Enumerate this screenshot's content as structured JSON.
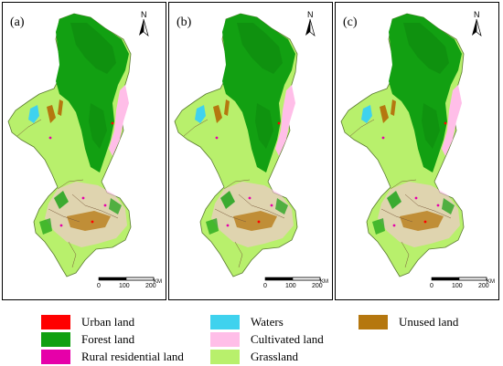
{
  "panels": [
    {
      "label": "(a)"
    },
    {
      "label": "(b)"
    },
    {
      "label": "(c)"
    }
  ],
  "north_arrow": {
    "letter": "N"
  },
  "scale_bar": {
    "ticks": [
      "0",
      "100",
      "200"
    ],
    "unit": "KM"
  },
  "legend": [
    {
      "label": "Urban land",
      "color": "#ff0000"
    },
    {
      "label": "Forest land",
      "color": "#12a012"
    },
    {
      "label": "Rural residential land",
      "color": "#e600a9"
    },
    {
      "label": "Waters",
      "color": "#3fd2ee"
    },
    {
      "label": "Cultivated land",
      "color": "#ffbee8"
    },
    {
      "label": "Grassland",
      "color": "#b8f06c"
    },
    {
      "label": "Unused land",
      "color": "#b5770f"
    }
  ]
}
